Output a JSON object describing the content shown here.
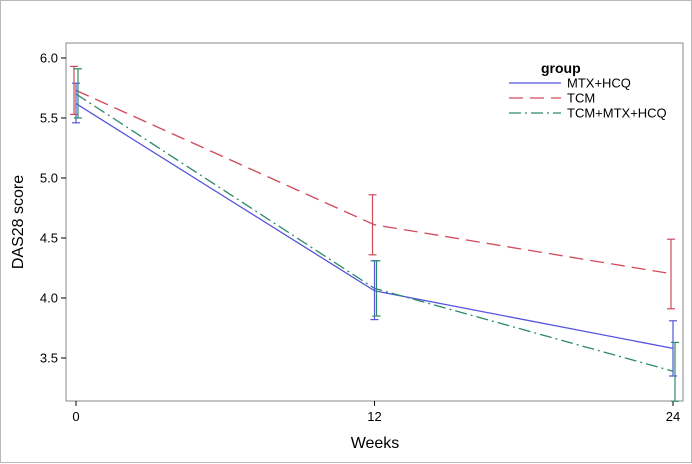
{
  "chart_data": {
    "type": "line",
    "xlabel": "Weeks",
    "ylabel": "DAS28 score",
    "x": [
      0,
      12,
      24
    ],
    "x_tick_labels": [
      "0",
      "12",
      "24"
    ],
    "xlim": [
      0,
      24
    ],
    "ylim": [
      3.1,
      6.0
    ],
    "y_ticks": [
      3.5,
      4.0,
      4.5,
      5.0,
      5.5,
      6.0
    ],
    "y_tick_labels": [
      "3.5",
      "4.0",
      "4.5",
      "5.0",
      "5.5",
      "6.0"
    ],
    "grid": false,
    "legend": {
      "title": "group",
      "position": "top-right"
    },
    "series": [
      {
        "name": "MTX+HCQ",
        "color": "#5555dd",
        "dash": "solid",
        "values": [
          5.62,
          4.06,
          3.58
        ],
        "error_low": [
          5.46,
          3.82,
          3.35
        ],
        "error_high": [
          5.79,
          4.31,
          3.81
        ]
      },
      {
        "name": "TCM",
        "color": "#d04a5a",
        "dash": "dashed",
        "values": [
          5.73,
          4.61,
          4.2
        ],
        "error_low": [
          5.53,
          4.36,
          3.91
        ],
        "error_high": [
          5.93,
          4.86,
          4.49
        ]
      },
      {
        "name": "TCM+MTX+HCQ",
        "color": "#2a8a6a",
        "dash": "dashdot",
        "values": [
          5.7,
          4.08,
          3.39
        ],
        "error_low": [
          5.5,
          3.85,
          3.14
        ],
        "error_high": [
          5.91,
          4.31,
          3.63
        ]
      }
    ]
  }
}
